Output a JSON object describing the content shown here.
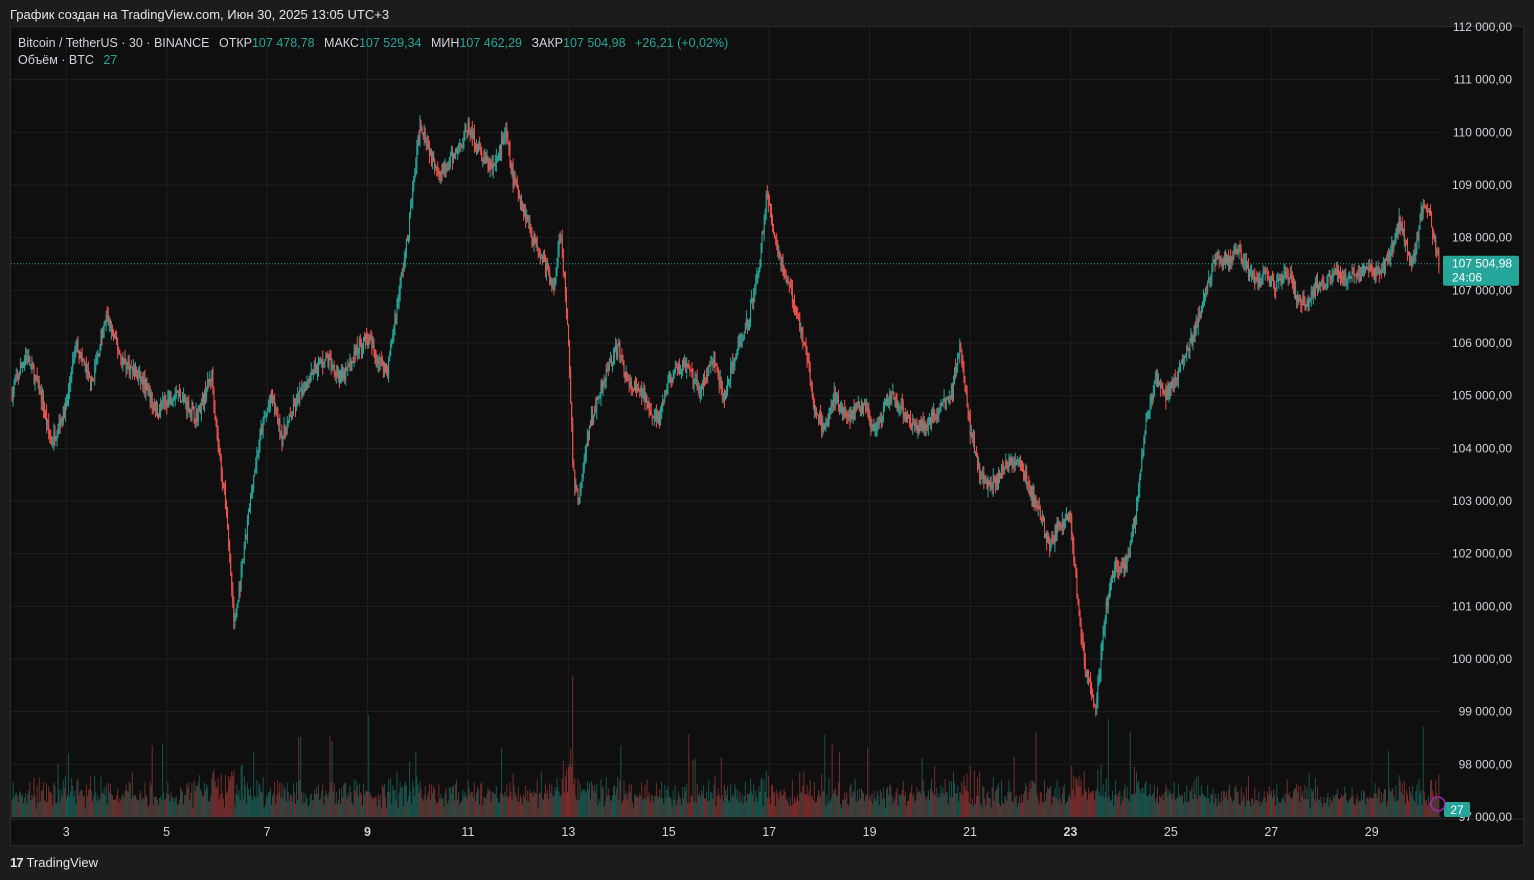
{
  "caption": "График создан на TradingView.com, Июн 30, 2025 13:05 UTC+3",
  "legend": {
    "symbol": "Bitcoin / TetherUS · 30 · BINANCE",
    "open_label": "ОТКР",
    "open": "107 478,78",
    "high_label": "МАКС",
    "high": "107 529,34",
    "low_label": "МИН",
    "low": "107 462,29",
    "close_label": "ЗАКР",
    "close": "107 504,98",
    "change": "+26,21 (+0,02%)",
    "volume_label": "Объём · BTC",
    "volume_value": "27"
  },
  "price_badge": {
    "price": "107 504,98",
    "countdown": "24:06"
  },
  "volume_badge": "27",
  "footer": {
    "brand": "TradingView"
  },
  "colors": {
    "up": "#26a69a",
    "down": "#ef5350",
    "bg": "#0f0f0f",
    "grid": "#1f1f1f"
  },
  "chart_data": {
    "type": "candlestick",
    "symbol": "BTCUSDT",
    "interval": "30",
    "ylim": [
      97000,
      112000
    ],
    "y_ticks": [
      97000,
      98000,
      99000,
      100000,
      101000,
      102000,
      103000,
      104000,
      105000,
      106000,
      107000,
      108000,
      109000,
      110000,
      111000,
      112000
    ],
    "y_tick_labels": [
      "97 000,00",
      "98 000,00",
      "99 000,00",
      "100 000,00",
      "101 000,00",
      "102 000,00",
      "103 000,00",
      "104 000,00",
      "105 000,00",
      "106 000,00",
      "107 000,00",
      "108 000,00",
      "109 000,00",
      "110 000,00",
      "111 000,00",
      "112 000,00"
    ],
    "x_range_days": [
      1.9,
      30.4
    ],
    "x_ticks": [
      {
        "day": 3,
        "label": "3",
        "bold": false
      },
      {
        "day": 5,
        "label": "5",
        "bold": false
      },
      {
        "day": 7,
        "label": "7",
        "bold": false
      },
      {
        "day": 9,
        "label": "9",
        "bold": true
      },
      {
        "day": 11,
        "label": "11",
        "bold": false
      },
      {
        "day": 13,
        "label": "13",
        "bold": false
      },
      {
        "day": 15,
        "label": "15",
        "bold": false
      },
      {
        "day": 17,
        "label": "17",
        "bold": false
      },
      {
        "day": 19,
        "label": "19",
        "bold": false
      },
      {
        "day": 21,
        "label": "21",
        "bold": false
      },
      {
        "day": 23,
        "label": "23",
        "bold": true
      },
      {
        "day": 25,
        "label": "25",
        "bold": false
      },
      {
        "day": 27,
        "label": "27",
        "bold": false
      },
      {
        "day": 29,
        "label": "29",
        "bold": false
      }
    ],
    "price_path": [
      [
        1.9,
        105000
      ],
      [
        2.2,
        105800
      ],
      [
        2.5,
        105000
      ],
      [
        2.7,
        104100
      ],
      [
        3.0,
        104800
      ],
      [
        3.2,
        106000
      ],
      [
        3.5,
        105200
      ],
      [
        3.8,
        106500
      ],
      [
        4.1,
        105700
      ],
      [
        4.5,
        105300
      ],
      [
        4.8,
        104700
      ],
      [
        5.2,
        105100
      ],
      [
        5.6,
        104600
      ],
      [
        5.9,
        105400
      ],
      [
        6.0,
        104300
      ],
      [
        6.2,
        102700
      ],
      [
        6.35,
        100600
      ],
      [
        6.5,
        101700
      ],
      [
        6.7,
        103300
      ],
      [
        6.9,
        104400
      ],
      [
        7.1,
        105000
      ],
      [
        7.3,
        104200
      ],
      [
        7.6,
        104900
      ],
      [
        7.9,
        105500
      ],
      [
        8.2,
        105700
      ],
      [
        8.5,
        105300
      ],
      [
        8.8,
        105900
      ],
      [
        9.0,
        106100
      ],
      [
        9.2,
        105700
      ],
      [
        9.4,
        105500
      ],
      [
        9.6,
        106800
      ],
      [
        9.8,
        108000
      ],
      [
        10.05,
        110200
      ],
      [
        10.3,
        109500
      ],
      [
        10.5,
        109200
      ],
      [
        10.8,
        109700
      ],
      [
        11.0,
        110100
      ],
      [
        11.3,
        109500
      ],
      [
        11.5,
        109300
      ],
      [
        11.75,
        110000
      ],
      [
        11.9,
        109100
      ],
      [
        12.1,
        108600
      ],
      [
        12.3,
        108000
      ],
      [
        12.5,
        107600
      ],
      [
        12.7,
        107000
      ],
      [
        12.85,
        108200
      ],
      [
        13.0,
        106000
      ],
      [
        13.1,
        103500
      ],
      [
        13.2,
        103000
      ],
      [
        13.4,
        104300
      ],
      [
        13.6,
        105000
      ],
      [
        13.8,
        105600
      ],
      [
        14.0,
        105900
      ],
      [
        14.2,
        105200
      ],
      [
        14.5,
        105000
      ],
      [
        14.8,
        104500
      ],
      [
        15.0,
        105300
      ],
      [
        15.3,
        105600
      ],
      [
        15.6,
        105100
      ],
      [
        15.9,
        105700
      ],
      [
        16.1,
        104900
      ],
      [
        16.3,
        105700
      ],
      [
        16.6,
        106500
      ],
      [
        16.8,
        107500
      ],
      [
        16.95,
        108800
      ],
      [
        17.1,
        108100
      ],
      [
        17.3,
        107300
      ],
      [
        17.5,
        106800
      ],
      [
        17.7,
        106000
      ],
      [
        17.9,
        104800
      ],
      [
        18.1,
        104300
      ],
      [
        18.3,
        105000
      ],
      [
        18.6,
        104600
      ],
      [
        18.9,
        104900
      ],
      [
        19.1,
        104200
      ],
      [
        19.4,
        105000
      ],
      [
        19.7,
        104700
      ],
      [
        19.9,
        104400
      ],
      [
        20.2,
        104500
      ],
      [
        20.4,
        104800
      ],
      [
        20.6,
        104900
      ],
      [
        20.8,
        106000
      ],
      [
        21.0,
        104400
      ],
      [
        21.2,
        103500
      ],
      [
        21.4,
        103300
      ],
      [
        21.6,
        103500
      ],
      [
        21.8,
        103800
      ],
      [
        22.0,
        103700
      ],
      [
        22.2,
        103200
      ],
      [
        22.4,
        102700
      ],
      [
        22.6,
        102100
      ],
      [
        22.8,
        102600
      ],
      [
        23.0,
        102700
      ],
      [
        23.15,
        101000
      ],
      [
        23.3,
        99800
      ],
      [
        23.5,
        99000
      ],
      [
        23.7,
        100900
      ],
      [
        23.9,
        101800
      ],
      [
        24.1,
        101700
      ],
      [
        24.3,
        102700
      ],
      [
        24.5,
        104500
      ],
      [
        24.7,
        105300
      ],
      [
        24.9,
        105000
      ],
      [
        25.1,
        105300
      ],
      [
        25.3,
        105800
      ],
      [
        25.5,
        106300
      ],
      [
        25.7,
        107000
      ],
      [
        25.9,
        107600
      ],
      [
        26.1,
        107500
      ],
      [
        26.3,
        107800
      ],
      [
        26.5,
        107400
      ],
      [
        26.7,
        107200
      ],
      [
        26.9,
        107300
      ],
      [
        27.1,
        107100
      ],
      [
        27.3,
        107400
      ],
      [
        27.5,
        106900
      ],
      [
        27.7,
        106700
      ],
      [
        27.9,
        107100
      ],
      [
        28.1,
        107200
      ],
      [
        28.3,
        107400
      ],
      [
        28.5,
        107200
      ],
      [
        28.7,
        107300
      ],
      [
        28.9,
        107400
      ],
      [
        29.1,
        107300
      ],
      [
        29.3,
        107500
      ],
      [
        29.55,
        108300
      ],
      [
        29.8,
        107500
      ],
      [
        30.05,
        108700
      ],
      [
        30.2,
        108200
      ],
      [
        30.35,
        107505
      ]
    ],
    "last_price": 107504.98,
    "volume_max_label": "27"
  }
}
